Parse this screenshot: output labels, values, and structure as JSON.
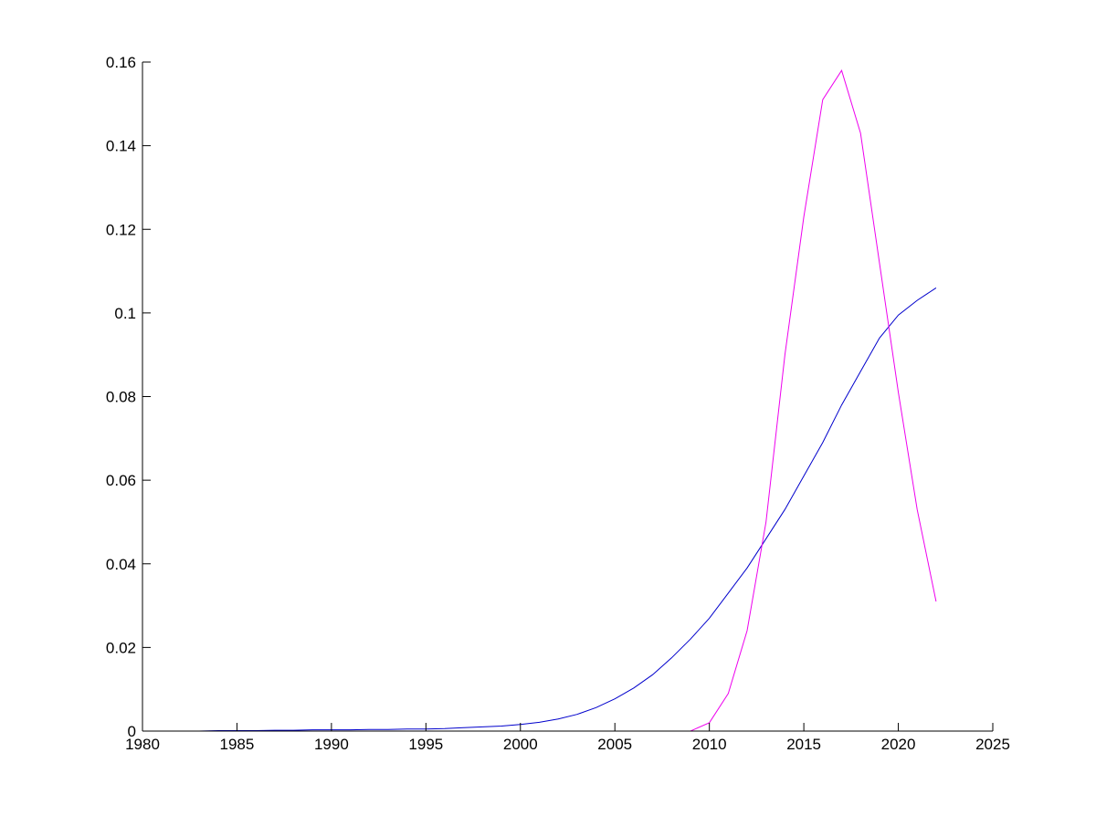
{
  "chart_data": {
    "type": "line",
    "title": "",
    "xlabel": "",
    "ylabel": "",
    "xlim": [
      1980,
      2025
    ],
    "ylim": [
      0,
      0.16
    ],
    "grid": false,
    "legend": "none",
    "x_ticks": [
      "1980",
      "1985",
      "1990",
      "1995",
      "2000",
      "2005",
      "2010",
      "2015",
      "2020",
      "2025"
    ],
    "y_ticks": [
      "0",
      "0.02",
      "0.04",
      "0.06",
      "0.08",
      "0.1",
      "0.12",
      "0.14",
      "0.16"
    ],
    "x": [
      1980,
      1981,
      1982,
      1983,
      1984,
      1985,
      1986,
      1987,
      1988,
      1989,
      1990,
      1991,
      1992,
      1993,
      1994,
      1995,
      1996,
      1997,
      1998,
      1999,
      2000,
      2001,
      2002,
      2003,
      2004,
      2005,
      2006,
      2007,
      2008,
      2009,
      2010,
      2011,
      2012,
      2013,
      2014,
      2015,
      2016,
      2017,
      2018,
      2019,
      2020,
      2021,
      2022
    ],
    "series": [
      {
        "color": "#0000cc",
        "values": [
          0,
          0,
          0,
          0,
          0.0001,
          0.0001,
          0.0001,
          0.0002,
          0.0002,
          0.0003,
          0.0003,
          0.0003,
          0.0004,
          0.0004,
          0.0005,
          0.0005,
          0.0006,
          0.0008,
          0.001,
          0.0012,
          0.0016,
          0.0021,
          0.0029,
          0.004,
          0.0056,
          0.0077,
          0.0103,
          0.0135,
          0.0175,
          0.022,
          0.027,
          0.033,
          0.039,
          0.046,
          0.053,
          0.061,
          0.069,
          0.078,
          0.086,
          0.094,
          0.0995,
          0.103,
          0.106
        ]
      },
      {
        "color": "#ee00ee",
        "values": [
          0,
          0,
          0,
          0,
          0,
          0,
          0,
          0,
          0,
          0,
          0,
          0,
          0,
          0,
          0,
          0,
          0,
          0,
          0,
          0,
          0,
          0,
          0,
          0,
          0,
          0,
          0,
          0,
          0,
          0,
          0.002,
          0.009,
          0.024,
          0.05,
          0.09,
          0.123,
          0.151,
          0.158,
          0.143,
          0.112,
          0.081,
          0.053,
          0.031
        ]
      }
    ]
  }
}
